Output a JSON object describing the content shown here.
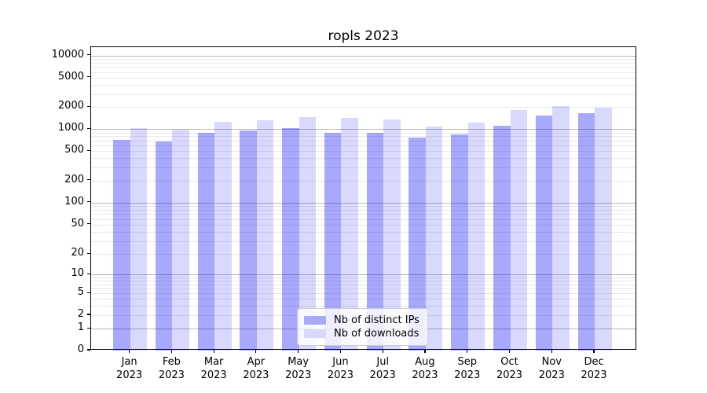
{
  "chart_data": {
    "type": "bar",
    "title": "ropls 2023",
    "year": "2023",
    "categories": [
      "Jan",
      "Feb",
      "Mar",
      "Apr",
      "May",
      "Jun",
      "Jul",
      "Aug",
      "Sep",
      "Oct",
      "Nov",
      "Dec"
    ],
    "series": [
      {
        "name": "Nb of distinct IPs",
        "color": "#a9a9fa",
        "fill": "rgba(0,0,245,0.34)",
        "values": [
          720,
          680,
          885,
          960,
          1040,
          895,
          895,
          775,
          850,
          1120,
          1530,
          1640
        ]
      },
      {
        "name": "Nb of downloads",
        "color": "#d8d8fa",
        "fill": "rgba(0,0,245,0.15)",
        "values": [
          1040,
          975,
          1260,
          1330,
          1470,
          1420,
          1345,
          1085,
          1230,
          1810,
          2040,
          1960
        ]
      }
    ],
    "yscale": "symlog",
    "ylim": [
      0,
      12500
    ],
    "yticks": [
      {
        "value": 10000,
        "label": "10000"
      },
      {
        "value": 5000,
        "label": "5000"
      },
      {
        "value": 2000,
        "label": "2000"
      },
      {
        "value": 1000,
        "label": "1000"
      },
      {
        "value": 500,
        "label": "500"
      },
      {
        "value": 200,
        "label": "200"
      },
      {
        "value": 100,
        "label": "100"
      },
      {
        "value": 50,
        "label": "50"
      },
      {
        "value": 20,
        "label": "20"
      },
      {
        "value": 10,
        "label": "10"
      },
      {
        "value": 5,
        "label": "5"
      },
      {
        "value": 2,
        "label": "2"
      },
      {
        "value": 1,
        "label": "1"
      },
      {
        "value": 0,
        "label": "0"
      }
    ],
    "grid": "horizontal major and minor",
    "legend_position": "lower center"
  },
  "colors": {
    "major_grid": "#b8b8b8",
    "minor_grid": "#e9e9e9",
    "spine": "#000000",
    "text": "#000000"
  }
}
